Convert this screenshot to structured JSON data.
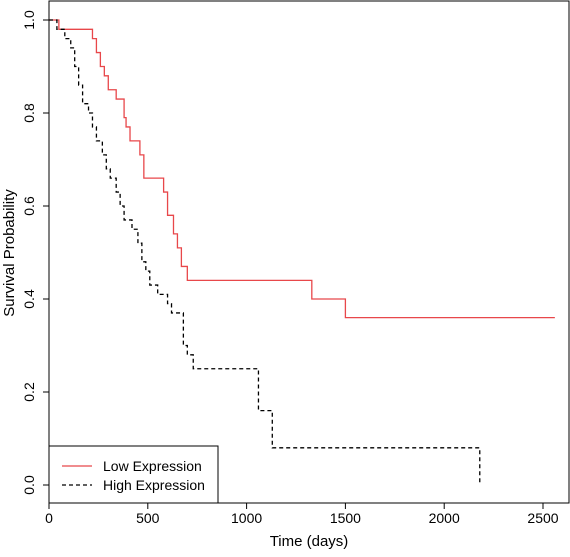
{
  "chart_data": {
    "type": "line",
    "title": "",
    "xlabel": "Time (days)",
    "ylabel": "Survival Probability",
    "xlim": [
      0,
      2600
    ],
    "ylim": [
      0,
      1.0
    ],
    "x_ticks": [
      0,
      500,
      1000,
      1500,
      2000,
      2500
    ],
    "y_ticks": [
      0.0,
      0.2,
      0.4,
      0.6,
      0.8,
      1.0
    ],
    "x_tick_labels": [
      "0",
      "500",
      "1000",
      "1500",
      "2000",
      "2500"
    ],
    "y_tick_labels": [
      "0.0",
      "0.2",
      "0.4",
      "0.6",
      "0.8",
      "1.0"
    ],
    "grid": false,
    "legend_position": "bottom-left",
    "series": [
      {
        "name": "Low Expression",
        "color": "#e8474a",
        "style": "solid",
        "step": true,
        "points": [
          [
            0,
            1.0
          ],
          [
            50,
            0.98
          ],
          [
            120,
            0.98
          ],
          [
            200,
            0.98
          ],
          [
            220,
            0.96
          ],
          [
            240,
            0.93
          ],
          [
            260,
            0.9
          ],
          [
            280,
            0.88
          ],
          [
            300,
            0.85
          ],
          [
            340,
            0.83
          ],
          [
            380,
            0.79
          ],
          [
            390,
            0.77
          ],
          [
            410,
            0.74
          ],
          [
            430,
            0.74
          ],
          [
            460,
            0.71
          ],
          [
            480,
            0.66
          ],
          [
            520,
            0.66
          ],
          [
            580,
            0.63
          ],
          [
            600,
            0.58
          ],
          [
            630,
            0.54
          ],
          [
            650,
            0.51
          ],
          [
            670,
            0.47
          ],
          [
            700,
            0.44
          ],
          [
            1330,
            0.4
          ],
          [
            1500,
            0.36
          ],
          [
            2560,
            0.36
          ]
        ]
      },
      {
        "name": "High Expression",
        "color": "#000000",
        "style": "dashed",
        "step": true,
        "points": [
          [
            0,
            1.0
          ],
          [
            40,
            0.98
          ],
          [
            80,
            0.96
          ],
          [
            110,
            0.94
          ],
          [
            130,
            0.9
          ],
          [
            150,
            0.86
          ],
          [
            170,
            0.82
          ],
          [
            200,
            0.8
          ],
          [
            220,
            0.77
          ],
          [
            240,
            0.74
          ],
          [
            270,
            0.71
          ],
          [
            290,
            0.68
          ],
          [
            310,
            0.66
          ],
          [
            340,
            0.63
          ],
          [
            360,
            0.6
          ],
          [
            380,
            0.57
          ],
          [
            420,
            0.55
          ],
          [
            450,
            0.52
          ],
          [
            470,
            0.48
          ],
          [
            490,
            0.46
          ],
          [
            510,
            0.43
          ],
          [
            550,
            0.41
          ],
          [
            600,
            0.39
          ],
          [
            620,
            0.37
          ],
          [
            680,
            0.3
          ],
          [
            700,
            0.28
          ],
          [
            730,
            0.25
          ],
          [
            1060,
            0.16
          ],
          [
            1130,
            0.08
          ],
          [
            2180,
            0.0
          ]
        ]
      }
    ]
  }
}
